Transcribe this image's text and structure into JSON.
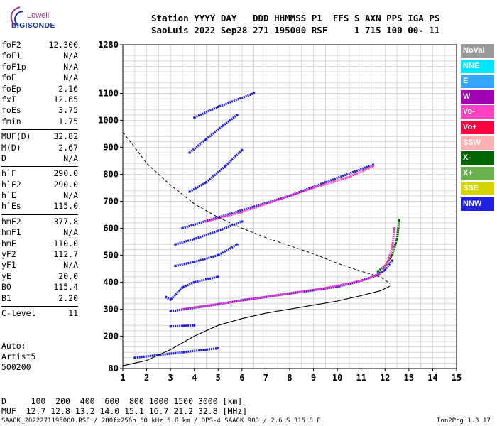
{
  "logo": {
    "line1": "Lowell",
    "line2": "DIGISONDE"
  },
  "header": {
    "line1": "Station YYYY DAY   DDD HHMMSS P1  FFS S AXN PPS IGA PS",
    "line2": "SaoLuis 2022 Sep28 271 195000 RSF     1 715 100 00- 11"
  },
  "params": [
    [
      {
        "name": "foF2",
        "value": "12.300"
      },
      {
        "name": "foF1",
        "value": "N/A"
      },
      {
        "name": "foF1p",
        "value": "N/A"
      },
      {
        "name": "foE",
        "value": "N/A"
      },
      {
        "name": "foEp",
        "value": "2.16"
      },
      {
        "name": "fxI",
        "value": "12.65"
      },
      {
        "name": "foEs",
        "value": "3.75"
      },
      {
        "name": "fmin",
        "value": "1.75"
      }
    ],
    [
      {
        "name": "MUF(D)",
        "value": "32.82"
      },
      {
        "name": "M(D)",
        "value": "2.67"
      },
      {
        "name": "D",
        "value": "N/A"
      }
    ],
    [
      {
        "name": "h`F",
        "value": "290.0"
      },
      {
        "name": "h`F2",
        "value": "290.0"
      },
      {
        "name": "h`E",
        "value": "N/A"
      },
      {
        "name": "h`Es",
        "value": "115.0"
      }
    ],
    [
      {
        "name": "hmF2",
        "value": "377.8"
      },
      {
        "name": "hmF1",
        "value": "N/A"
      },
      {
        "name": "hmE",
        "value": "110.0"
      },
      {
        "name": "yF2",
        "value": "112.7"
      },
      {
        "name": "yF1",
        "value": "N/A"
      },
      {
        "name": "yE",
        "value": "20.0"
      },
      {
        "name": "B0",
        "value": "115.4"
      },
      {
        "name": "B1",
        "value": "2.20"
      }
    ],
    [
      {
        "name": "C-level",
        "value": "11"
      }
    ]
  ],
  "autoscale": {
    "line1": "Auto:",
    "line2": "Artist5",
    "line3": "500200"
  },
  "legend": [
    {
      "label": "NoVal",
      "color": "#999999"
    },
    {
      "label": "NNE",
      "color": "#00e5ff"
    },
    {
      "label": "E",
      "color": "#33a6ff"
    },
    {
      "label": "W",
      "color": "#a000b4"
    },
    {
      "label": "Vo-",
      "color": "#ff40c0"
    },
    {
      "label": "Vo+",
      "color": "#ff0040"
    },
    {
      "label": "SSW",
      "color": "#ffb0b0"
    },
    {
      "label": "X-",
      "color": "#006400"
    },
    {
      "label": "X+",
      "color": "#6ab04c"
    },
    {
      "label": "SSE",
      "color": "#d4d400"
    },
    {
      "label": "NNW",
      "color": "#2020e0"
    }
  ],
  "muf_table": {
    "line1": "D     100  200  400  600  800 1000 1500 3000 [km]",
    "line2": "MUF  12.7 12.8 13.2 14.0 15.1 16.7 21.2 32.8 [MHz]"
  },
  "footer": {
    "left": "SAA0K_2022271195000.RSF / 280fx256h 50 kHz 5.0 km / DPS-4 SAA0K 903 / 2.6 S 315.8 E",
    "right": "Ion2Png 1.3.17"
  },
  "chart_data": {
    "type": "scatter",
    "xlim": [
      1,
      15
    ],
    "ylim": [
      80,
      1280
    ],
    "xticks": [
      "1",
      "2",
      "3",
      "4",
      "5",
      "6",
      "7",
      "8",
      "9",
      "10",
      "11",
      "12",
      "13",
      "14",
      "15"
    ],
    "yticks": [
      "80",
      "200",
      "300",
      "400",
      "500",
      "600",
      "700",
      "800",
      "900",
      "1000",
      "1100",
      "1280"
    ],
    "grid": true,
    "traces": [
      {
        "color": "#2020e0",
        "points": [
          [
            3.0,
            292
          ],
          [
            4.0,
            305
          ],
          [
            5.0,
            318
          ],
          [
            6.0,
            333
          ],
          [
            7.0,
            345
          ],
          [
            8.0,
            358
          ],
          [
            9.0,
            370
          ],
          [
            10.0,
            383
          ],
          [
            10.8,
            400
          ],
          [
            11.5,
            420
          ],
          [
            12.0,
            445
          ],
          [
            12.3,
            480
          ]
        ]
      },
      {
        "color": "#ff40c0",
        "points": [
          [
            3.5,
            300
          ],
          [
            5.5,
            325
          ],
          [
            7.5,
            352
          ],
          [
            9.5,
            378
          ],
          [
            11.0,
            405
          ],
          [
            11.8,
            430
          ]
        ]
      },
      {
        "color": "#2020e0",
        "points": [
          [
            2.8,
            345
          ],
          [
            3.0,
            335
          ],
          [
            3.5,
            380
          ],
          [
            4.0,
            400
          ],
          [
            4.5,
            410
          ],
          [
            5.0,
            420
          ]
        ]
      },
      {
        "color": "#2020e0",
        "points": [
          [
            3.2,
            460
          ],
          [
            4.0,
            475
          ],
          [
            5.0,
            500
          ],
          [
            5.8,
            540
          ]
        ]
      },
      {
        "color": "#2020e0",
        "points": [
          [
            3.2,
            540
          ],
          [
            4.0,
            560
          ],
          [
            5.0,
            590
          ],
          [
            6.0,
            625
          ]
        ]
      },
      {
        "color": "#2020e0",
        "points": [
          [
            3.5,
            600
          ],
          [
            5.0,
            640
          ],
          [
            6.5,
            680
          ],
          [
            8.0,
            720
          ],
          [
            9.5,
            770
          ],
          [
            11.5,
            835
          ]
        ]
      },
      {
        "color": "#ff40c0",
        "points": [
          [
            4.5,
            625
          ],
          [
            6.0,
            660
          ],
          [
            7.5,
            705
          ],
          [
            9.0,
            750
          ],
          [
            10.5,
            790
          ],
          [
            11.5,
            830
          ]
        ]
      },
      {
        "color": "#2020e0",
        "points": [
          [
            3.8,
            735
          ],
          [
            4.5,
            770
          ],
          [
            5.3,
            830
          ],
          [
            6.0,
            890
          ]
        ]
      },
      {
        "color": "#2020e0",
        "points": [
          [
            3.8,
            880
          ],
          [
            4.5,
            930
          ],
          [
            5.2,
            980
          ],
          [
            5.8,
            1020
          ]
        ]
      },
      {
        "color": "#2020e0",
        "points": [
          [
            4.0,
            1010
          ],
          [
            5.0,
            1050
          ],
          [
            6.5,
            1100
          ]
        ]
      },
      {
        "color": "#2020e0",
        "points": [
          [
            1.5,
            120
          ],
          [
            2.5,
            130
          ],
          [
            3.5,
            140
          ],
          [
            4.5,
            150
          ],
          [
            5.0,
            155
          ]
        ]
      },
      {
        "color": "#2020e0",
        "points": [
          [
            3.0,
            236
          ],
          [
            3.5,
            238
          ],
          [
            4.0,
            240
          ]
        ]
      },
      {
        "color": "#006400",
        "points": [
          [
            11.7,
            440
          ],
          [
            12.0,
            460
          ],
          [
            12.3,
            500
          ],
          [
            12.5,
            560
          ],
          [
            12.6,
            630
          ]
        ]
      },
      {
        "color": "#ff40c0",
        "points": [
          [
            11.9,
            450
          ],
          [
            12.1,
            470
          ],
          [
            12.3,
            530
          ],
          [
            12.4,
            600
          ]
        ]
      }
    ],
    "profile": [
      [
        1.0,
        90
      ],
      [
        2.0,
        110
      ],
      [
        3.0,
        150
      ],
      [
        4.0,
        200
      ],
      [
        5.0,
        240
      ],
      [
        6.0,
        265
      ],
      [
        7.0,
        285
      ],
      [
        8.0,
        300
      ],
      [
        9.0,
        315
      ],
      [
        10.0,
        330
      ],
      [
        11.0,
        350
      ],
      [
        11.8,
        368
      ],
      [
        12.2,
        385
      ]
    ],
    "model_curve": [
      [
        1.0,
        955
      ],
      [
        1.5,
        900
      ],
      [
        2.0,
        840
      ],
      [
        3.0,
        760
      ],
      [
        4.0,
        690
      ],
      [
        5.0,
        640
      ],
      [
        6.0,
        600
      ],
      [
        7.0,
        565
      ],
      [
        8.0,
        535
      ],
      [
        9.0,
        505
      ],
      [
        10.0,
        470
      ],
      [
        11.0,
        440
      ],
      [
        11.8,
        420
      ],
      [
        12.2,
        395
      ]
    ]
  }
}
